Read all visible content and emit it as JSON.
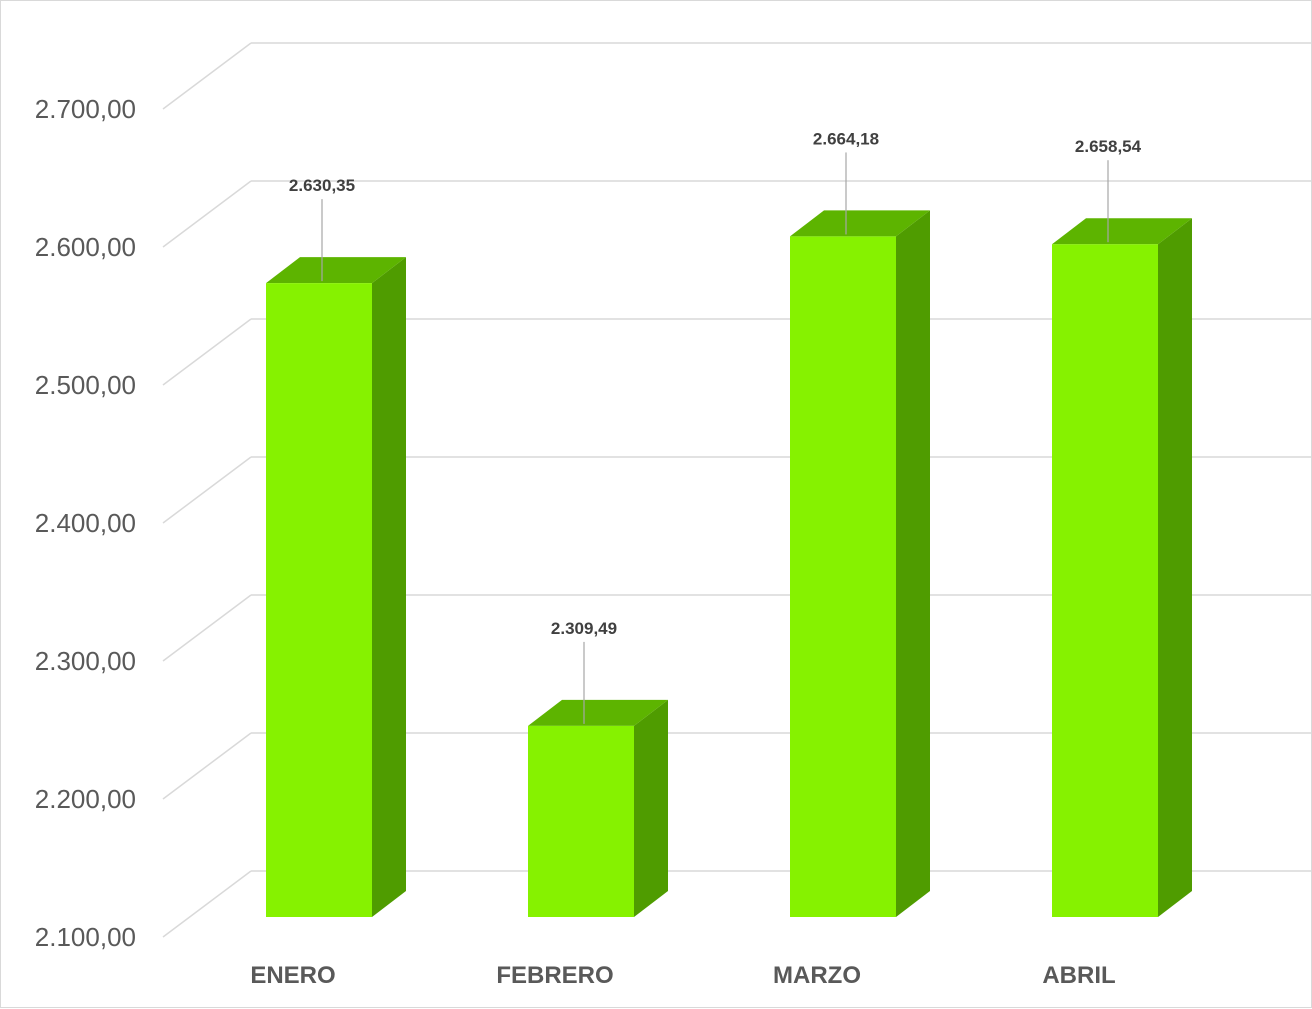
{
  "chart_data": {
    "type": "bar",
    "categories": [
      "ENERO",
      "FEBRERO",
      "MARZO",
      "ABRIL"
    ],
    "values": [
      2630.35,
      2309.49,
      2664.18,
      2658.54
    ],
    "data_labels": [
      "2.630,35",
      "2.309,49",
      "2.664,18",
      "2.658,54"
    ],
    "y_ticks": [
      "2.100,00",
      "2.200,00",
      "2.300,00",
      "2.400,00",
      "2.500,00",
      "2.600,00",
      "2.700,00"
    ],
    "y_tick_values": [
      2100,
      2200,
      2300,
      2400,
      2500,
      2600,
      2700
    ],
    "ylim": [
      2100,
      2700
    ],
    "title": "",
    "xlabel": "",
    "ylabel": "",
    "grid": true,
    "style": "3d-column",
    "colors": {
      "front": "#86F200",
      "side": "#4F9C00",
      "top": "#5DB400",
      "grid": "#d9d9d9"
    }
  }
}
